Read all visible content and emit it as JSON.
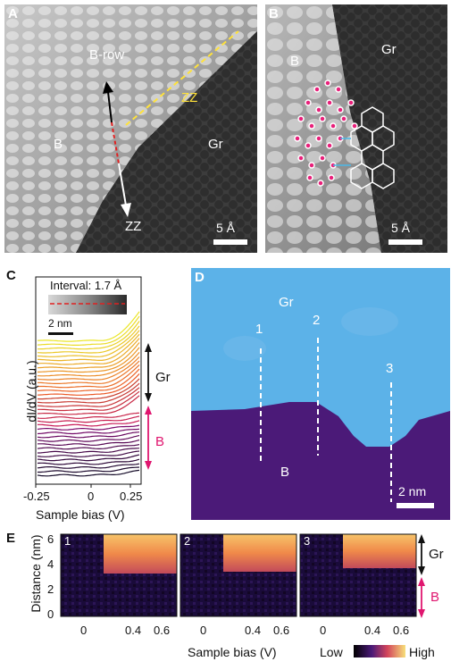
{
  "panels": {
    "A": {
      "label": "A",
      "b_row": "B-row",
      "zz_top": "ZZ",
      "zz_bottom": "ZZ",
      "region_b": "B",
      "region_gr": "Gr",
      "scale": "5 Å"
    },
    "B": {
      "label": "B",
      "region_b": "B",
      "region_gr": "Gr",
      "scale": "5 Å"
    },
    "C": {
      "label": "C",
      "interval": "Interval: 1.7 Å",
      "inset_scale": "2 nm",
      "ylabel": "dI/dV (a.u.)",
      "xlabel": "Sample bias (V)",
      "gr_label": "Gr",
      "b_label": "B",
      "xticks": [
        "-0.25",
        "0",
        "0.25"
      ]
    },
    "D": {
      "label": "D",
      "gr_label": "Gr",
      "b_label": "B",
      "line_labels": [
        "1",
        "2",
        "3"
      ],
      "scale": "2 nm"
    },
    "E": {
      "label": "E",
      "ylabel": "Distance (nm)",
      "xlabel": "Sample bias (V)",
      "yticks": [
        "6",
        "4",
        "2",
        "0"
      ],
      "xticks": [
        "0",
        "0.4",
        "0.6"
      ],
      "subpanels": [
        "1",
        "2",
        "3"
      ],
      "gr_label": "Gr",
      "b_label": "B",
      "colorbar_low": "Low",
      "colorbar_high": "High"
    }
  },
  "colors": {
    "magenta": "#e0166f",
    "yellow": "#ffe23a",
    "d_blue": "#5cb2e8",
    "d_purple": "#4b1a78"
  }
}
